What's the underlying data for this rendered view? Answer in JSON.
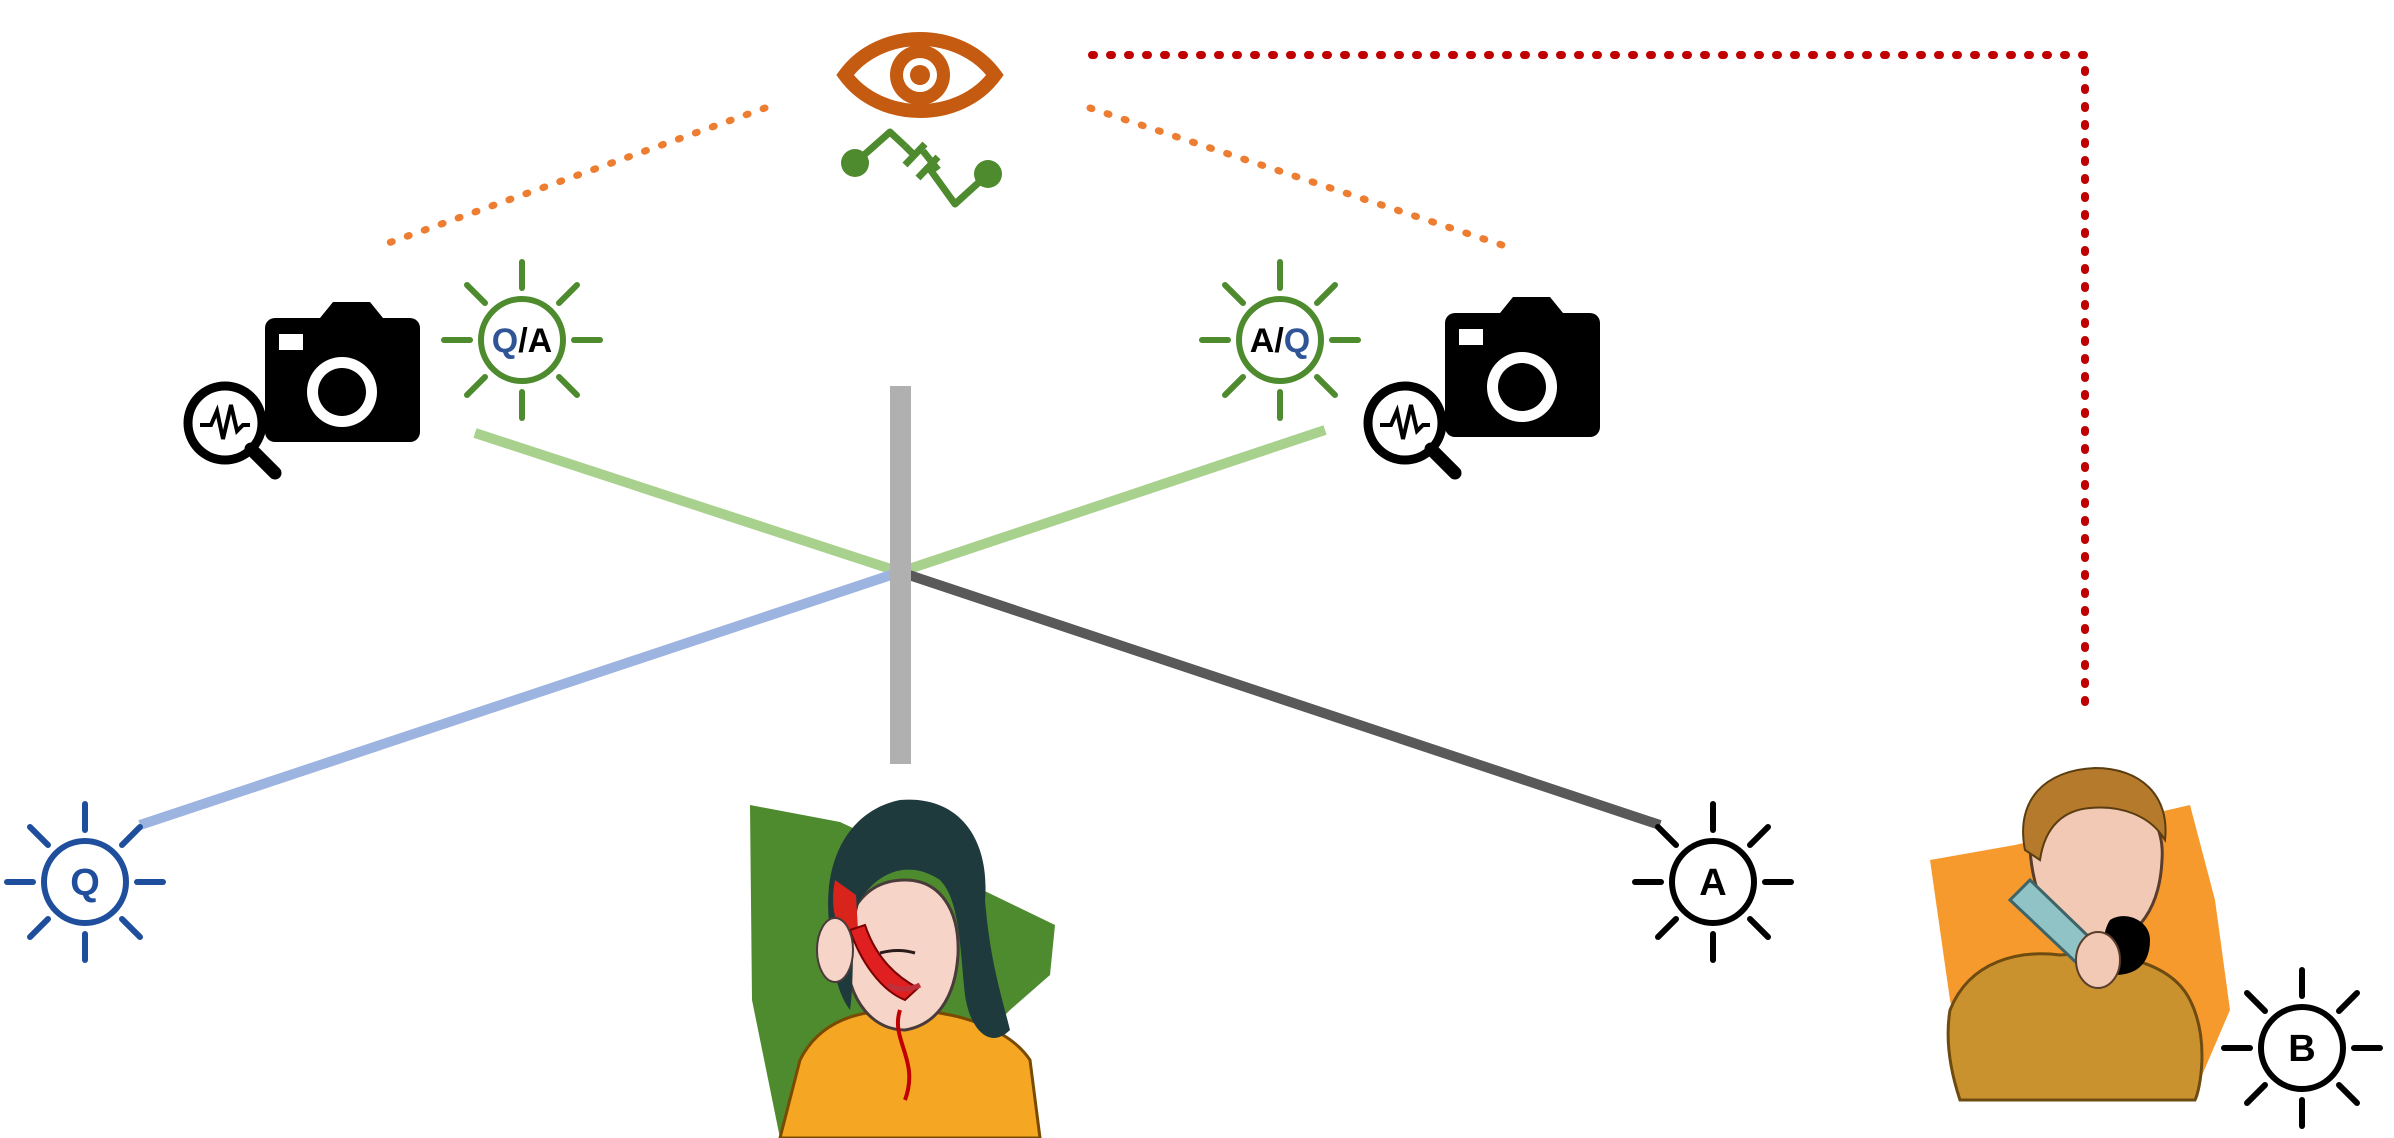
{
  "diagram": {
    "sources": {
      "q": {
        "label": "Q",
        "color": "#1f4e9c"
      },
      "a": {
        "label": "A",
        "color": "#000000"
      },
      "b": {
        "label": "B",
        "color": "#000000"
      }
    },
    "detector_left": {
      "first": "Q",
      "sep": "/",
      "second": "A"
    },
    "detector_right": {
      "first": "A",
      "sep": "/",
      "second": "Q"
    },
    "colors": {
      "eye": "#c55a11",
      "switch": "#4e8a2e",
      "detector_sun": "#4e8a2e",
      "light_green_beam": "#a9d18e",
      "light_blue_beam": "#9db4e0",
      "dark_beam": "#595959",
      "splitter": "#b0b0b0",
      "orange_dotted": "#ed7d31",
      "red_dotted": "#c00000",
      "q_blue": "#2f5597"
    },
    "icons": [
      "eye-icon",
      "switch-icon",
      "camera-icon",
      "magnifier-waveform-icon",
      "sun-icon",
      "woman-on-phone-illustration",
      "man-on-phone-illustration"
    ]
  }
}
